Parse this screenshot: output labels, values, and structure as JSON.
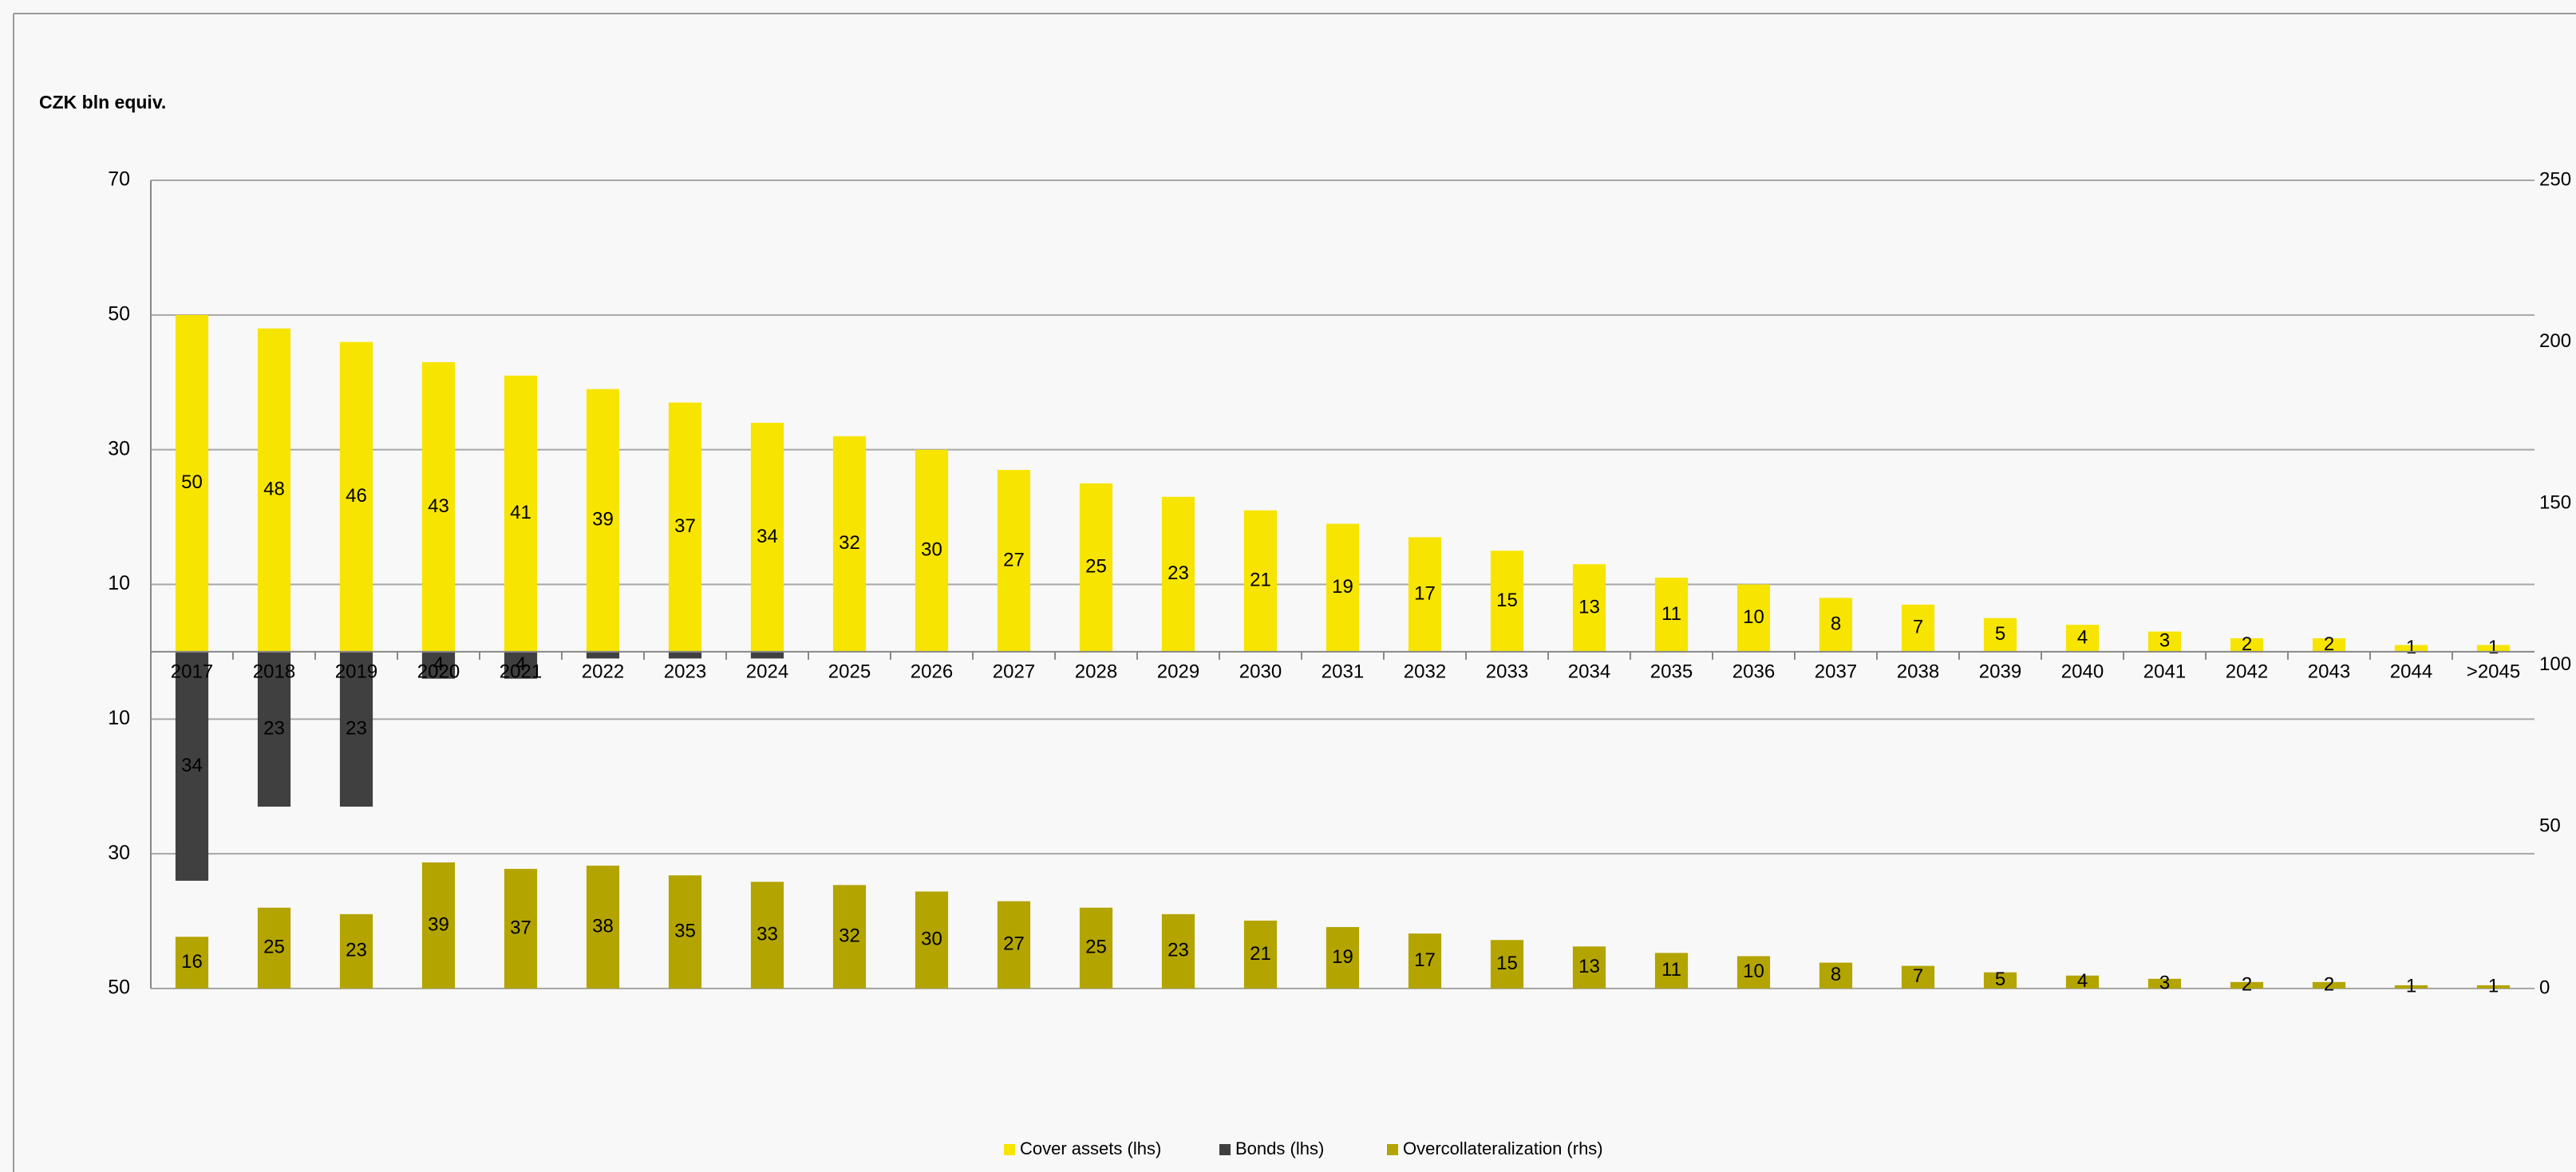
{
  "chart_data": {
    "type": "bar",
    "y_label": "CZK bln equiv.",
    "categories": [
      "2017",
      "2018",
      "2019",
      "2020",
      "2021",
      "2022",
      "2023",
      "2024",
      "2025",
      "2026",
      "2027",
      "2028",
      "2029",
      "2030",
      "2031",
      "2032",
      "2033",
      "2034",
      "2035",
      "2036",
      "2037",
      "2038",
      "2039",
      "2040",
      "2041",
      "2042",
      "2043",
      "2044",
      ">2045"
    ],
    "series": [
      {
        "name": "Cover assets (lhs)",
        "color": "#f7e400",
        "values": [
          50,
          48,
          46,
          43,
          41,
          39,
          37,
          34,
          32,
          30,
          27,
          25,
          23,
          21,
          19,
          17,
          15,
          13,
          11,
          10,
          8,
          7,
          5,
          4,
          3,
          2,
          2,
          1,
          1
        ]
      },
      {
        "name": "Bonds (lhs)",
        "color": "#404040",
        "values": [
          -34,
          -23,
          -23,
          -4,
          -4,
          -1,
          -1,
          -1,
          null,
          null,
          null,
          null,
          null,
          null,
          null,
          null,
          null,
          null,
          null,
          null,
          null,
          null,
          null,
          null,
          null,
          null,
          null,
          null,
          null
        ],
        "value_labels": [
          "34",
          "23",
          "23",
          "4",
          "4",
          null,
          null,
          null,
          null,
          null,
          null,
          null,
          null,
          null,
          null,
          null,
          null,
          null,
          null,
          null,
          null,
          null,
          null,
          null,
          null,
          null,
          null,
          null,
          null
        ]
      },
      {
        "name": "Overcollateralization (rhs)",
        "color": "#b3a400",
        "axis": "y2",
        "values": [
          16,
          25,
          23,
          39,
          37,
          38,
          35,
          33,
          32,
          30,
          27,
          25,
          23,
          21,
          19,
          17,
          15,
          13,
          11,
          10,
          8,
          7,
          5,
          4,
          3,
          2,
          2,
          1,
          1
        ]
      }
    ],
    "ylim": [
      -50,
      70
    ],
    "yticks": [
      {
        "value": -50,
        "label": "50"
      },
      {
        "value": -30,
        "label": "30"
      },
      {
        "value": -10,
        "label": "10"
      },
      10,
      30,
      50,
      70
    ],
    "y2lim": [
      0,
      250
    ],
    "y2ticks": [
      0,
      50,
      100,
      150,
      200,
      250
    ],
    "grid": true,
    "legend": "bottom"
  }
}
